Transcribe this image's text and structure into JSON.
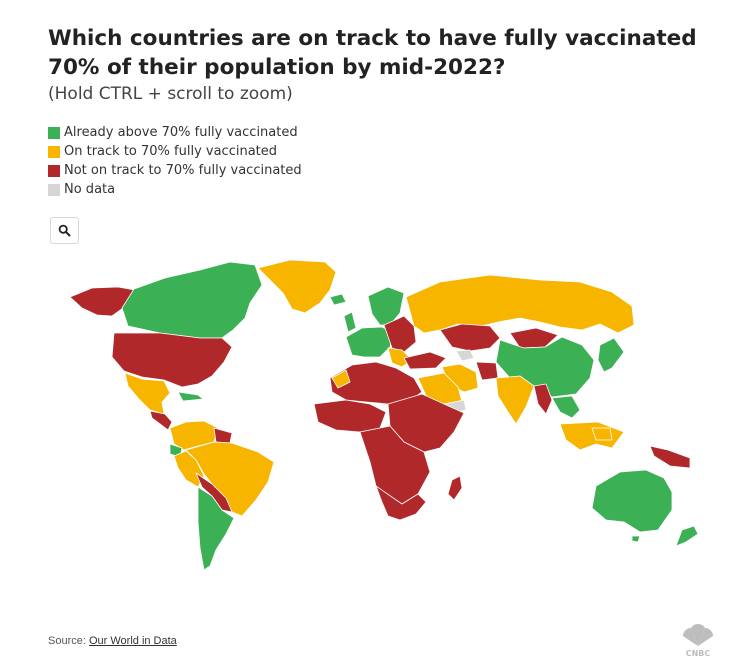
{
  "header": {
    "title": "Which countries are on track to have fully vaccinated 70% of their population by mid-2022?",
    "subtitle": "(Hold CTRL + scroll to zoom)"
  },
  "legend": {
    "items": [
      {
        "label": "Already above 70% fully vaccinated",
        "color": "#3cb054"
      },
      {
        "label": "On track to 70% fully vaccinated",
        "color": "#f7b500"
      },
      {
        "label": "Not on track to 70% fully vaccinated",
        "color": "#b0282a"
      },
      {
        "label": "No data",
        "color": "#d6d6d6"
      }
    ]
  },
  "controls": {
    "zoom_icon": "search-icon"
  },
  "footer": {
    "source_prefix": "Source: ",
    "source_link": "Our World in Data",
    "logo_text": "CNBC",
    "logo_icon": "cnbc-peacock-icon"
  }
}
